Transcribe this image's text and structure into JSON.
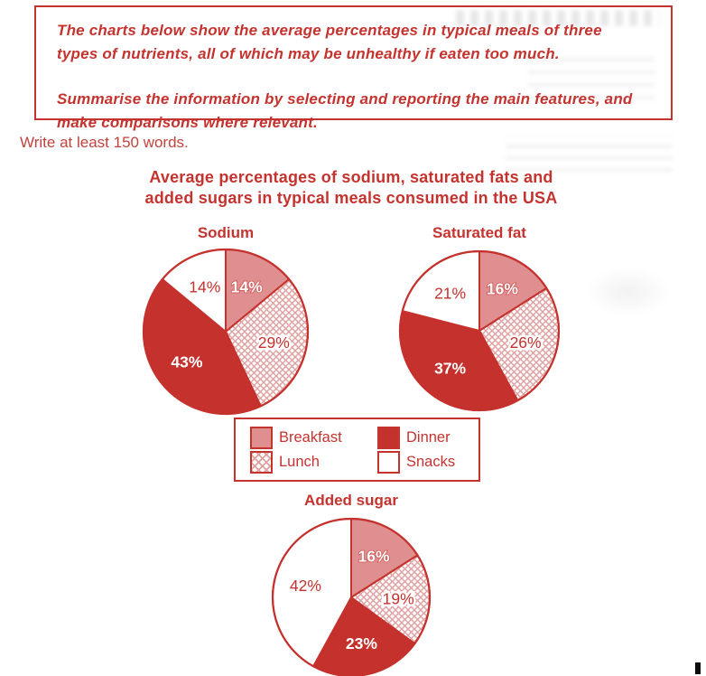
{
  "colors": {
    "red": "#c5312d",
    "pink": "#df8f8f",
    "hatch_line": "#dfa09f",
    "text_red": "#c5332f",
    "white": "#ffffff"
  },
  "task_box": {
    "paragraph1": "The charts below show the average percentages in typical meals of three\ntypes of nutrients, all of which may be unhealthy if eaten too much.",
    "paragraph2": "Summarise the information by selecting and reporting the main features, and\nmake comparisons where relevant."
  },
  "instruction": "Write at least 150 words.",
  "main_title": "Average percentages of sodium, saturated fats and\nadded sugars in typical meals consumed in the USA",
  "legend": {
    "items": [
      {
        "label": "Breakfast",
        "style": "pink-solid"
      },
      {
        "label": "Lunch",
        "style": "crosshatch"
      },
      {
        "label": "Dinner",
        "style": "red-solid"
      },
      {
        "label": "Snacks",
        "style": "white"
      }
    ]
  },
  "chart_data": [
    {
      "type": "pie",
      "title": "Sodium",
      "categories": [
        "Breakfast",
        "Lunch",
        "Dinner",
        "Snacks"
      ],
      "values": [
        14,
        29,
        43,
        14
      ],
      "labels": [
        "14%",
        "29%",
        "43%",
        "14%"
      ],
      "label_styles": [
        "light",
        "halo",
        "light",
        "dark"
      ],
      "start_angle_deg": 0,
      "direction": "clockwise"
    },
    {
      "type": "pie",
      "title": "Saturated fat",
      "categories": [
        "Breakfast",
        "Lunch",
        "Dinner",
        "Snacks"
      ],
      "values": [
        16,
        26,
        37,
        21
      ],
      "labels": [
        "16%",
        "26%",
        "37%",
        "21%"
      ],
      "label_styles": [
        "light",
        "halo",
        "light",
        "dark"
      ],
      "start_angle_deg": 0,
      "direction": "clockwise"
    },
    {
      "type": "pie",
      "title": "Added sugar",
      "categories": [
        "Breakfast",
        "Lunch",
        "Dinner",
        "Snacks"
      ],
      "values": [
        16,
        19,
        23,
        42
      ],
      "labels": [
        "16%",
        "19%",
        "23%",
        "42%"
      ],
      "label_styles": [
        "light",
        "halo",
        "light",
        "dark"
      ],
      "start_angle_deg": 0,
      "direction": "clockwise"
    }
  ]
}
